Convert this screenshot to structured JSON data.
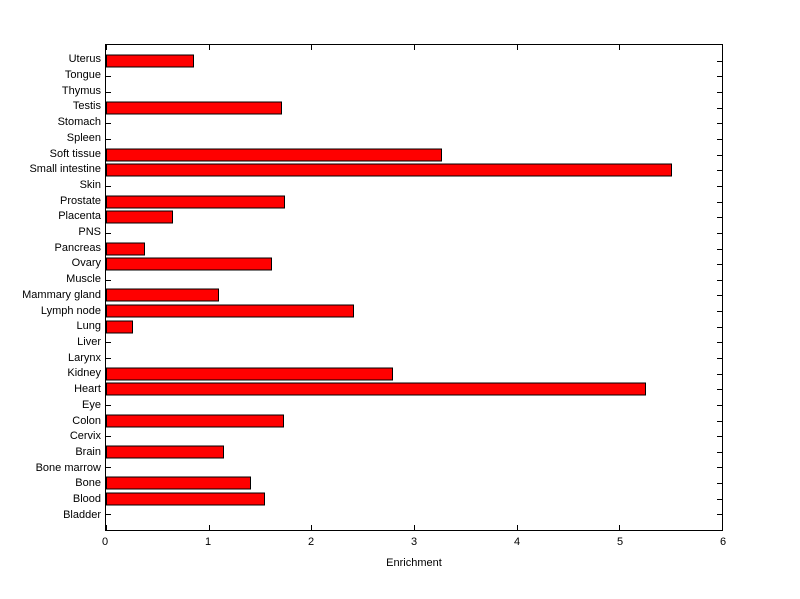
{
  "chart_data": {
    "type": "bar",
    "orientation": "horizontal",
    "title": "",
    "xlabel": "Enrichment",
    "ylabel": "",
    "categories": [
      "Uterus",
      "Tongue",
      "Thymus",
      "Testis",
      "Stomach",
      "Spleen",
      "Soft tissue",
      "Small intestine",
      "Skin",
      "Prostate",
      "Placenta",
      "PNS",
      "Pancreas",
      "Ovary",
      "Muscle",
      "Mammary gland",
      "Lymph node",
      "Lung",
      "Liver",
      "Larynx",
      "Kidney",
      "Heart",
      "Eye",
      "Colon",
      "Cervix",
      "Brain",
      "Bone marrow",
      "Bone",
      "Blood",
      "Bladder"
    ],
    "values": [
      0.86,
      0,
      0,
      1.71,
      0,
      0,
      3.27,
      5.51,
      0,
      1.74,
      0.65,
      0,
      0.38,
      1.62,
      0,
      1.1,
      2.42,
      0.26,
      0,
      0,
      2.8,
      5.26,
      0,
      1.73,
      0,
      1.15,
      0,
      1.41,
      1.55,
      0
    ],
    "xlim": [
      0,
      6
    ],
    "xticks": [
      0,
      1,
      2,
      3,
      4,
      5,
      6
    ],
    "grid": false,
    "legend_position": "none",
    "bar_color": "#ff0000",
    "bar_edge_color": "#000000",
    "axis_color": "#000000",
    "background_color": "#ffffff"
  }
}
